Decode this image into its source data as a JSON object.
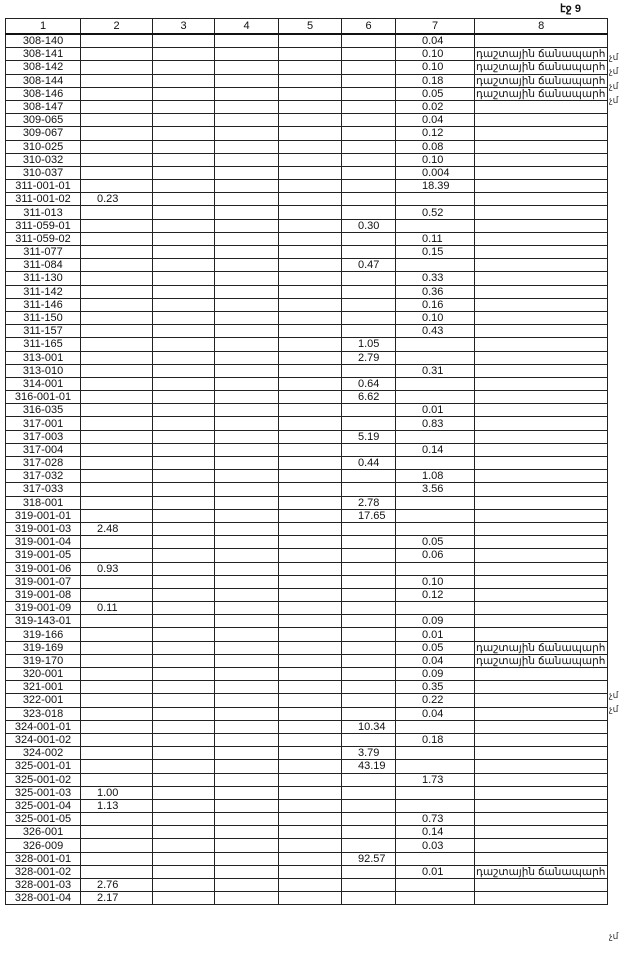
{
  "page_label": "էջ 9",
  "columns": [
    "1",
    "2",
    "3",
    "4",
    "5",
    "6",
    "7",
    "8"
  ],
  "road_note": "դաշտային ճանապարհ",
  "side_mark": "չմ",
  "rows": [
    [
      "308-140",
      "",
      "",
      "",
      "",
      "",
      "0.04",
      ""
    ],
    [
      "308-141",
      "",
      "",
      "",
      "",
      "",
      "0.10",
      "դաշտային ճանապարհ"
    ],
    [
      "308-142",
      "",
      "",
      "",
      "",
      "",
      "0.10",
      "դաշտային ճանապարհ"
    ],
    [
      "308-144",
      "",
      "",
      "",
      "",
      "",
      "0.18",
      "դաշտային ճանապարհ"
    ],
    [
      "308-146",
      "",
      "",
      "",
      "",
      "",
      "0.05",
      "դաշտային ճանապարհ"
    ],
    [
      "308-147",
      "",
      "",
      "",
      "",
      "",
      "0.02",
      ""
    ],
    [
      "309-065",
      "",
      "",
      "",
      "",
      "",
      "0.04",
      ""
    ],
    [
      "309-067",
      "",
      "",
      "",
      "",
      "",
      "0.12",
      ""
    ],
    [
      "310-025",
      "",
      "",
      "",
      "",
      "",
      "0.08",
      ""
    ],
    [
      "310-032",
      "",
      "",
      "",
      "",
      "",
      "0.10",
      ""
    ],
    [
      "310-037",
      "",
      "",
      "",
      "",
      "",
      "0.004",
      ""
    ],
    [
      "311-001-01",
      "",
      "",
      "",
      "",
      "",
      "18.39",
      ""
    ],
    [
      "311-001-02",
      "0.23",
      "",
      "",
      "",
      "",
      "",
      ""
    ],
    [
      "311-013",
      "",
      "",
      "",
      "",
      "",
      "0.52",
      ""
    ],
    [
      "311-059-01",
      "",
      "",
      "",
      "",
      "0.30",
      "",
      ""
    ],
    [
      "311-059-02",
      "",
      "",
      "",
      "",
      "",
      "0.11",
      ""
    ],
    [
      "311-077",
      "",
      "",
      "",
      "",
      "",
      "0.15",
      ""
    ],
    [
      "311-084",
      "",
      "",
      "",
      "",
      "0.47",
      "",
      ""
    ],
    [
      "311-130",
      "",
      "",
      "",
      "",
      "",
      "0.33",
      ""
    ],
    [
      "311-142",
      "",
      "",
      "",
      "",
      "",
      "0.36",
      ""
    ],
    [
      "311-146",
      "",
      "",
      "",
      "",
      "",
      "0.16",
      ""
    ],
    [
      "311-150",
      "",
      "",
      "",
      "",
      "",
      "0.10",
      ""
    ],
    [
      "311-157",
      "",
      "",
      "",
      "",
      "",
      "0.43",
      ""
    ],
    [
      "311-165",
      "",
      "",
      "",
      "",
      "1.05",
      "",
      ""
    ],
    [
      "313-001",
      "",
      "",
      "",
      "",
      "2.79",
      "",
      ""
    ],
    [
      "313-010",
      "",
      "",
      "",
      "",
      "",
      "0.31",
      ""
    ],
    [
      "314-001",
      "",
      "",
      "",
      "",
      "0.64",
      "",
      ""
    ],
    [
      "316-001-01",
      "",
      "",
      "",
      "",
      "6.62",
      "",
      ""
    ],
    [
      "316-035",
      "",
      "",
      "",
      "",
      "",
      "0.01",
      ""
    ],
    [
      "317-001",
      "",
      "",
      "",
      "",
      "",
      "0.83",
      ""
    ],
    [
      "317-003",
      "",
      "",
      "",
      "",
      "5.19",
      "",
      ""
    ],
    [
      "317-004",
      "",
      "",
      "",
      "",
      "",
      "0.14",
      ""
    ],
    [
      "317-028",
      "",
      "",
      "",
      "",
      "0.44",
      "",
      ""
    ],
    [
      "317-032",
      "",
      "",
      "",
      "",
      "",
      "1.08",
      ""
    ],
    [
      "317-033",
      "",
      "",
      "",
      "",
      "",
      "3.56",
      ""
    ],
    [
      "318-001",
      "",
      "",
      "",
      "",
      "2.78",
      "",
      ""
    ],
    [
      "319-001-01",
      "",
      "",
      "",
      "",
      "17.65",
      "",
      ""
    ],
    [
      "319-001-03",
      "2.48",
      "",
      "",
      "",
      "",
      "",
      ""
    ],
    [
      "319-001-04",
      "",
      "",
      "",
      "",
      "",
      "0.05",
      ""
    ],
    [
      "319-001-05",
      "",
      "",
      "",
      "",
      "",
      "0.06",
      ""
    ],
    [
      "319-001-06",
      "0.93",
      "",
      "",
      "",
      "",
      "",
      ""
    ],
    [
      "319-001-07",
      "",
      "",
      "",
      "",
      "",
      "0.10",
      ""
    ],
    [
      "319-001-08",
      "",
      "",
      "",
      "",
      "",
      "0.12",
      ""
    ],
    [
      "319-001-09",
      "0.11",
      "",
      "",
      "",
      "",
      "",
      ""
    ],
    [
      "319-143-01",
      "",
      "",
      "",
      "",
      "",
      "0.09",
      ""
    ],
    [
      "319-166",
      "",
      "",
      "",
      "",
      "",
      "0.01",
      ""
    ],
    [
      "319-169",
      "",
      "",
      "",
      "",
      "",
      "0.05",
      "դաշտային ճանապարհ"
    ],
    [
      "319-170",
      "",
      "",
      "",
      "",
      "",
      "0.04",
      "դաշտային ճանապարհ"
    ],
    [
      "320-001",
      "",
      "",
      "",
      "",
      "",
      "0.09",
      ""
    ],
    [
      "321-001",
      "",
      "",
      "",
      "",
      "",
      "0.35",
      ""
    ],
    [
      "322-001",
      "",
      "",
      "",
      "",
      "",
      "0.22",
      ""
    ],
    [
      "323-018",
      "",
      "",
      "",
      "",
      "",
      "0.04",
      ""
    ],
    [
      "324-001-01",
      "",
      "",
      "",
      "",
      "10.34",
      "",
      ""
    ],
    [
      "324-001-02",
      "",
      "",
      "",
      "",
      "",
      "0.18",
      ""
    ],
    [
      "324-002",
      "",
      "",
      "",
      "",
      "3.79",
      "",
      ""
    ],
    [
      "325-001-01",
      "",
      "",
      "",
      "",
      "43.19",
      "",
      ""
    ],
    [
      "325-001-02",
      "",
      "",
      "",
      "",
      "",
      "1.73",
      ""
    ],
    [
      "325-001-03",
      "1.00",
      "",
      "",
      "",
      "",
      "",
      ""
    ],
    [
      "325-001-04",
      "1.13",
      "",
      "",
      "",
      "",
      "",
      ""
    ],
    [
      "325-001-05",
      "",
      "",
      "",
      "",
      "",
      "0.73",
      ""
    ],
    [
      "326-001",
      "",
      "",
      "",
      "",
      "",
      "0.14",
      ""
    ],
    [
      "326-009",
      "",
      "",
      "",
      "",
      "",
      "0.03",
      ""
    ],
    [
      "328-001-01",
      "",
      "",
      "",
      "",
      "92.57",
      "",
      ""
    ],
    [
      "328-001-02",
      "",
      "",
      "",
      "",
      "",
      "0.01",
      "դաշտային ճանապարհ"
    ],
    [
      "328-001-03",
      "2.76",
      "",
      "",
      "",
      "",
      "",
      ""
    ],
    [
      "328-001-04",
      "2.17",
      "",
      "",
      "",
      "",
      "",
      ""
    ]
  ]
}
